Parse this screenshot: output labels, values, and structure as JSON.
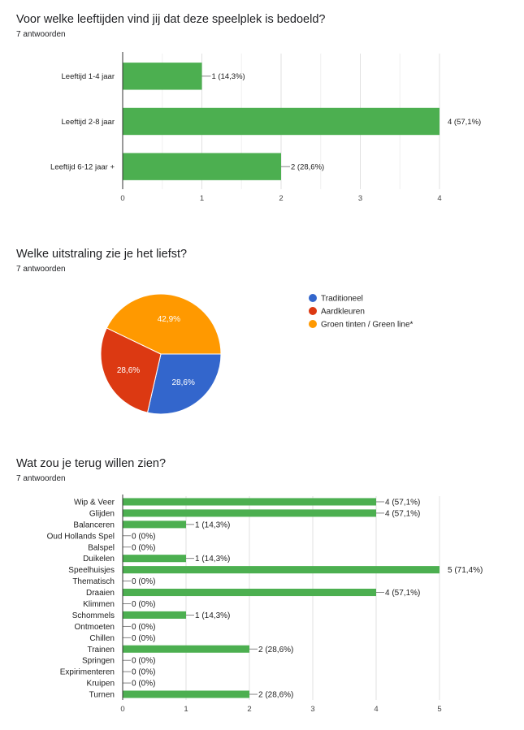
{
  "colors": {
    "bar": "#4caf50",
    "grid": "#e0e0e0",
    "axis": "#333333",
    "text": "#212121",
    "slice_blue": "#3366cc",
    "slice_red": "#dc3912",
    "slice_orange": "#ff9900"
  },
  "questions": [
    {
      "title": "Voor welke leeftijden vind jij dat deze speelplek is bedoeld?",
      "responses": "7 antwoorden"
    },
    {
      "title": "Welke uitstraling zie je het liefst?",
      "responses": "7 antwoorden"
    },
    {
      "title": "Wat zou je terug willen zien?",
      "responses": "7 antwoorden"
    }
  ],
  "chart_data": [
    {
      "type": "bar",
      "orientation": "horizontal",
      "categories": [
        "Leeftijd 1-4 jaar",
        "Leeftijd 2-8 jaar",
        "Leeftijd 6-12 jaar +"
      ],
      "values": [
        1,
        4,
        2
      ],
      "data_labels": [
        "1 (14,3%)",
        "4 (57,1%)",
        "2 (28,6%)"
      ],
      "xlim": [
        0,
        4
      ],
      "xticks": [
        "0",
        "1",
        "2",
        "3",
        "4"
      ],
      "grid": true
    },
    {
      "type": "pie",
      "labels": [
        "Traditioneel",
        "Aardkleuren",
        "Groen tinten / Green line*"
      ],
      "values": [
        2,
        2,
        3
      ],
      "data_labels": [
        "28,6%",
        "28,6%",
        "42,9%"
      ],
      "colors": [
        "#3366cc",
        "#dc3912",
        "#ff9900"
      ],
      "legend": "right"
    },
    {
      "type": "bar",
      "orientation": "horizontal",
      "categories": [
        "Wip & Veer",
        "Glijden",
        "Balanceren",
        "Oud Hollands Spel",
        "Balspel",
        "Duikelen",
        "Speelhuisjes",
        "Thematisch",
        "Draaien",
        "Klimmen",
        "Schommels",
        "Ontmoeten",
        "Chillen",
        "Trainen",
        "Springen",
        "Expirimenteren",
        "Kruipen",
        "Turnen"
      ],
      "values": [
        4,
        4,
        1,
        0,
        0,
        1,
        5,
        0,
        4,
        0,
        1,
        0,
        0,
        2,
        0,
        0,
        0,
        2
      ],
      "data_labels": [
        "4 (57,1%)",
        "4 (57,1%)",
        "1 (14,3%)",
        "0 (0%)",
        "0 (0%)",
        "1 (14,3%)",
        "5 (71,4%)",
        "0 (0%)",
        "4 (57,1%)",
        "0 (0%)",
        "1 (14,3%)",
        "0 (0%)",
        "0 (0%)",
        "2 (28,6%)",
        "0 (0%)",
        "0 (0%)",
        "0 (0%)",
        "2 (28,6%)"
      ],
      "xlim": [
        0,
        5
      ],
      "xticks": [
        "0",
        "1",
        "2",
        "3",
        "4",
        "5"
      ],
      "grid": true
    }
  ]
}
